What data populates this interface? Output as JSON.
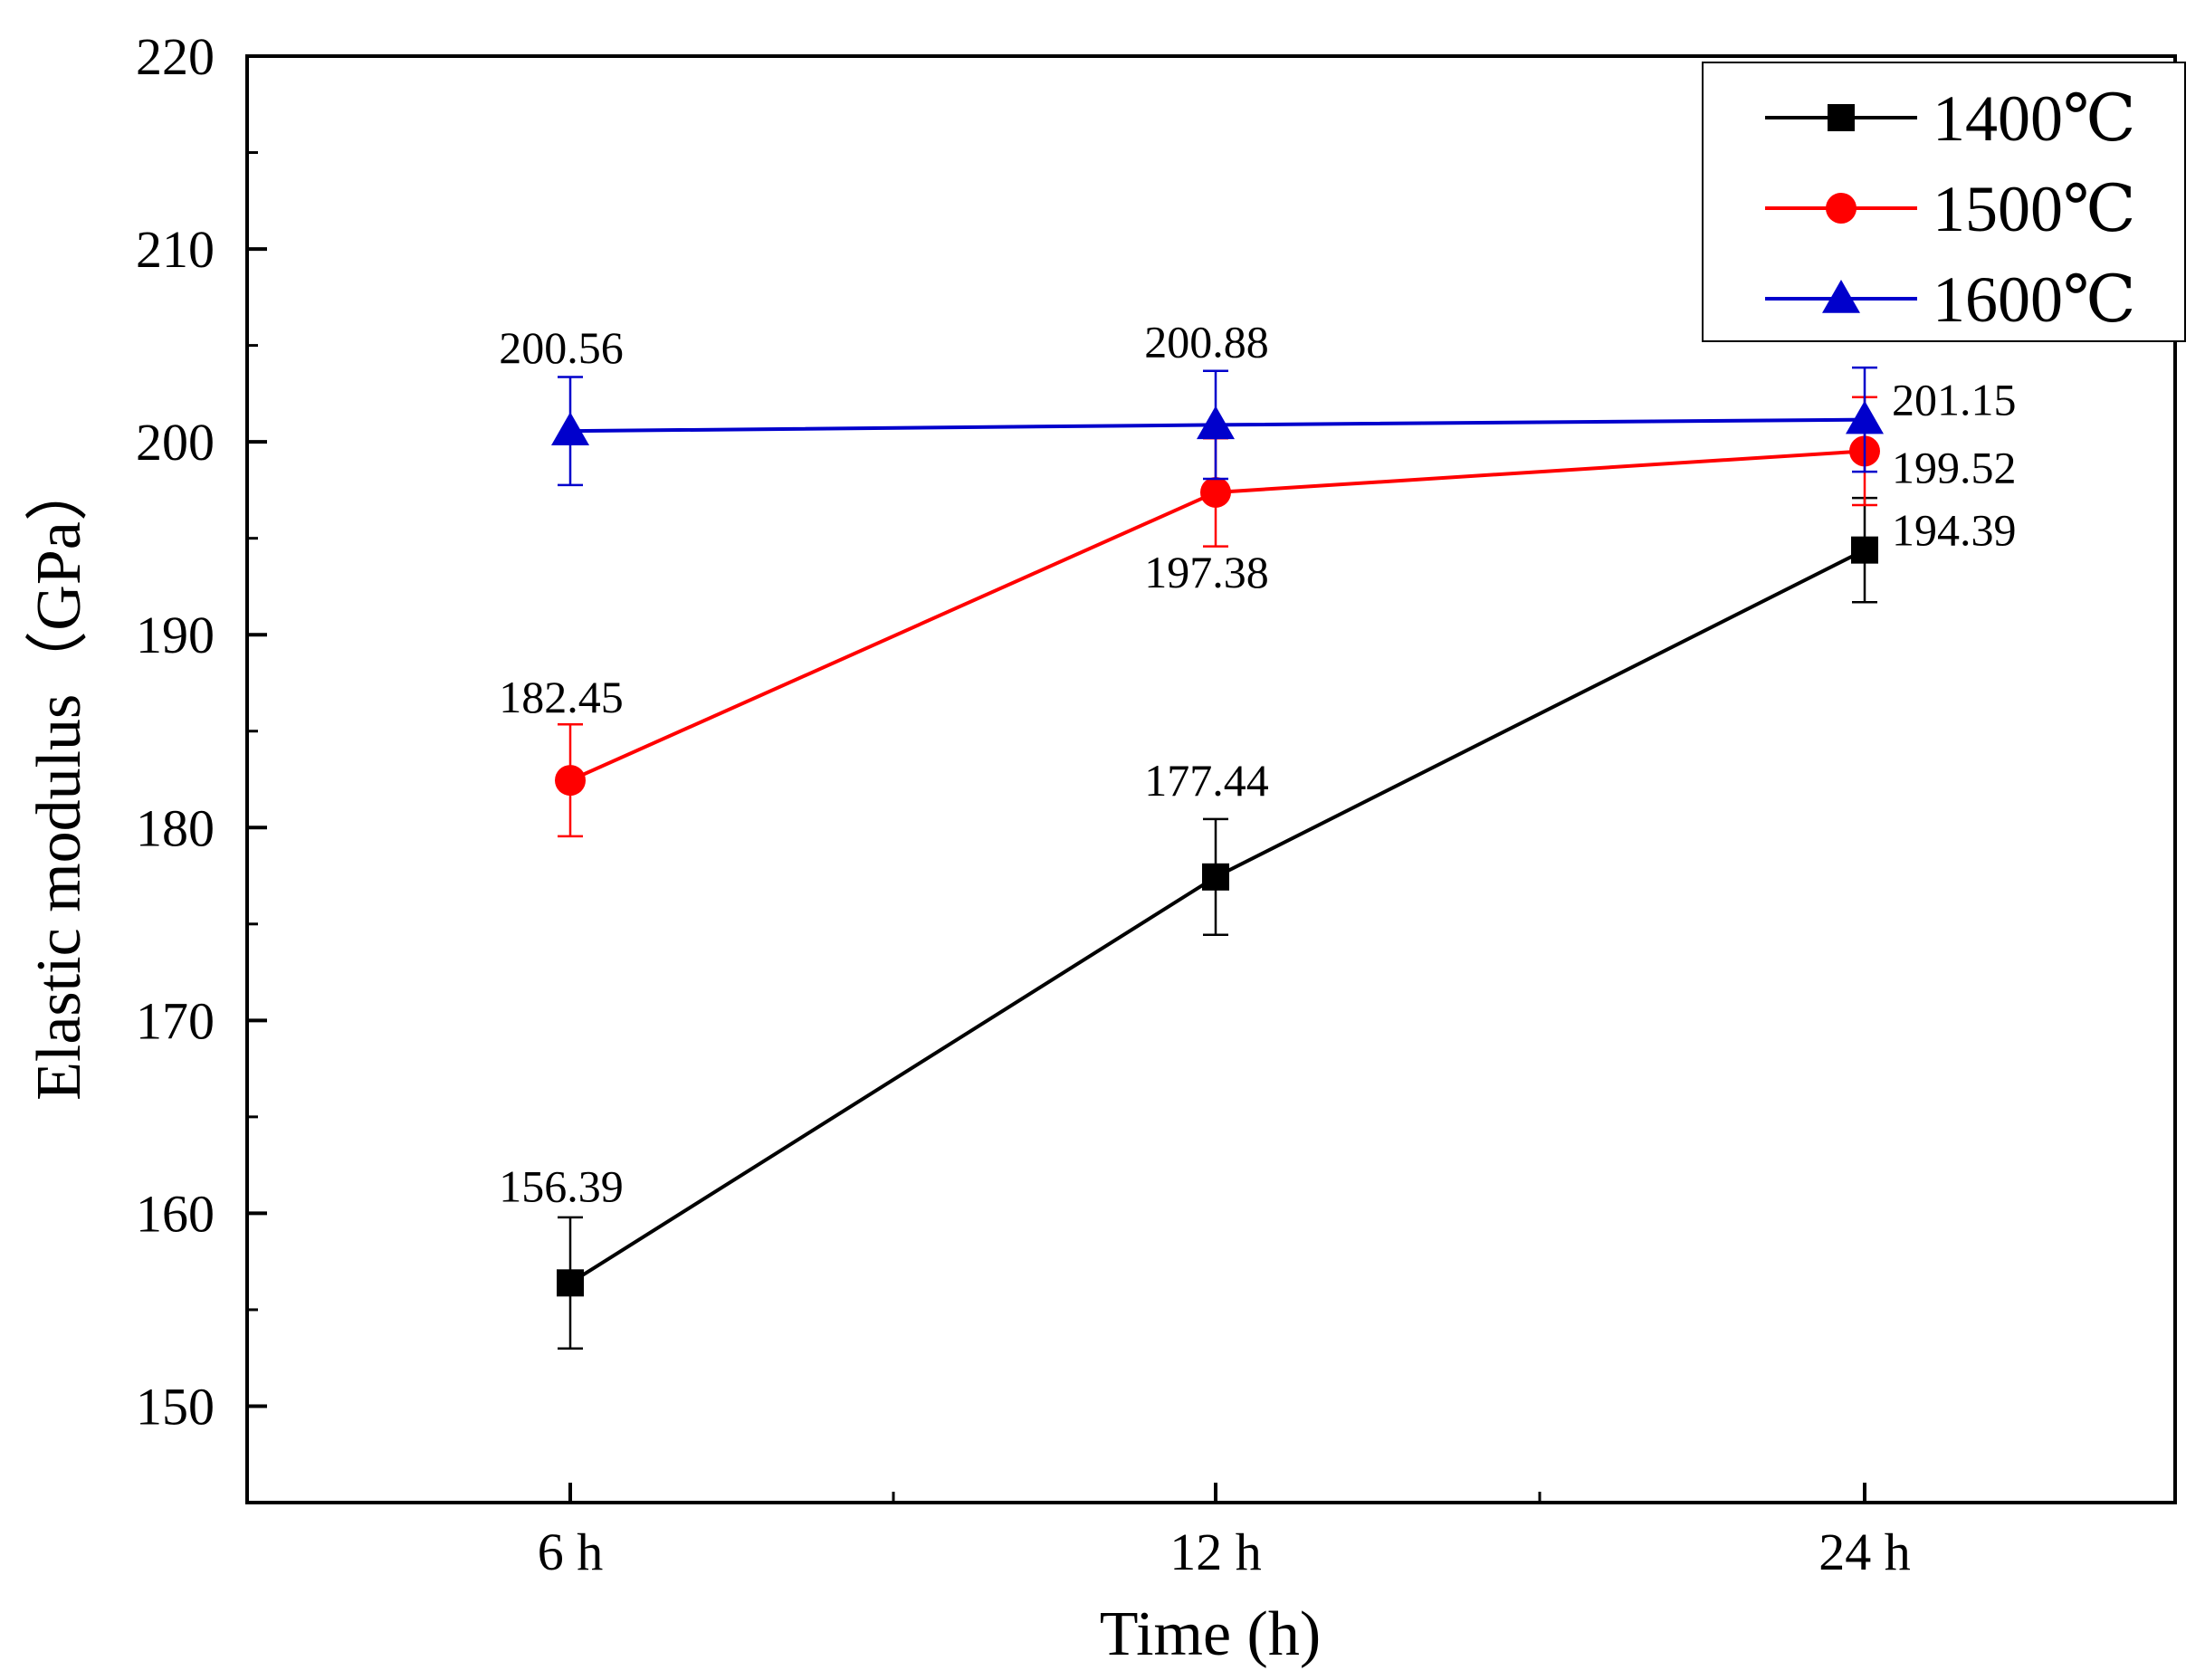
{
  "chart_data": {
    "type": "line",
    "title": "",
    "xlabel": "Time (h)",
    "ylabel": "Elastic modulus（GPa）",
    "categories": [
      "6 h",
      "12 h",
      "24 h"
    ],
    "ylim": [
      145,
      220
    ],
    "yticks": [
      150,
      160,
      170,
      180,
      190,
      200,
      210,
      220
    ],
    "grid": false,
    "legend_position": "top-right",
    "series": [
      {
        "name": "1400℃",
        "color": "#000000",
        "marker": "square",
        "values": [
          156.39,
          177.44,
          194.39
        ],
        "errors": [
          3.4,
          3.0,
          2.7
        ],
        "labels": [
          "156.39",
          "177.44",
          "194.39"
        ]
      },
      {
        "name": "1500℃",
        "color": "#ff0000",
        "marker": "circle",
        "values": [
          182.45,
          197.38,
          199.52
        ],
        "errors": [
          2.9,
          2.8,
          2.8
        ],
        "labels": [
          "182.45",
          "197.38",
          "199.52"
        ]
      },
      {
        "name": "1600℃",
        "color": "#0000cc",
        "marker": "triangle",
        "values": [
          200.56,
          200.88,
          201.15
        ],
        "errors": [
          2.8,
          2.8,
          2.7
        ],
        "labels": [
          "200.56",
          "200.88",
          "201.15"
        ]
      }
    ]
  }
}
